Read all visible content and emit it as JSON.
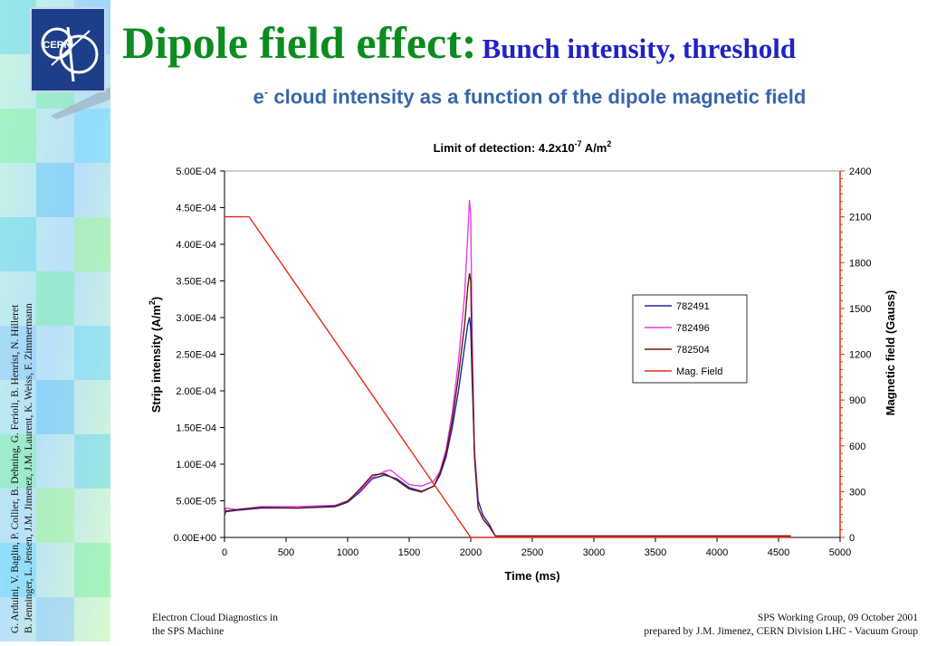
{
  "header": {
    "title_main": "Dipole field effect:",
    "title_sub": "Bunch intensity, threshold",
    "subtitle_e": "e",
    "subtitle_sup": "-",
    "subtitle_rest": " cloud intensity as a function of the dipole magnetic field"
  },
  "logo": {
    "text": "CERN"
  },
  "authors": {
    "line1": "G. Arduini, V. Baglin, P. Collier, B. Dehning, G. Ferioli, B. Henrist, N. Hilleret",
    "line2": "B. Jenninger, L. Jensen, J.M. Jimenez, J.M. Laurent, K. Weiss, F. Zimmermann"
  },
  "footer": {
    "left_line1": "Electron Cloud Diagnostics in",
    "left_line2": "the SPS Machine",
    "right_line1": "SPS Working Group, 09 October 2001",
    "right_line2": "prepared by J.M. Jimenez, CERN Division LHC - Vacuum Group"
  },
  "colors": {
    "title_green": "#0c8c1f",
    "title_blue": "#1f23c4",
    "subtitle_blue": "#3567a8",
    "series_782491": "#1a2aa8",
    "series_782496": "#e23ee8",
    "series_782504": "#6b1a0e",
    "mag_field": "#e8281e"
  },
  "chart_data": {
    "type": "line",
    "title_main": "Limit of detection: 4.2x10",
    "title_exp1": "-7",
    "title_unit": " A/m",
    "title_exp2": "2",
    "xlabel": "Time (ms)",
    "ylabel_main": "Strip intensity (A/m",
    "ylabel_exp": "2",
    "ylabel_close": ")",
    "y2label": "Magnetic field (Gauss)",
    "xlim": [
      0,
      5000
    ],
    "ylim": [
      0,
      0.0005
    ],
    "y2lim": [
      0,
      2400
    ],
    "x_ticks": [
      "0",
      "500",
      "1000",
      "1500",
      "2000",
      "2500",
      "3000",
      "3500",
      "4000",
      "4500",
      "5000"
    ],
    "y_ticks": [
      "0.00E+00",
      "5.00E-05",
      "1.00E-04",
      "1.50E-04",
      "2.00E-04",
      "2.50E-04",
      "3.00E-04",
      "3.50E-04",
      "4.00E-04",
      "4.50E-04",
      "5.00E-04"
    ],
    "y2_ticks": [
      "0",
      "300",
      "600",
      "900",
      "1200",
      "1500",
      "1800",
      "2100",
      "2400"
    ],
    "legend_position": "right",
    "series": [
      {
        "name": "782491",
        "axis": "left",
        "x": [
          0,
          10,
          100,
          300,
          600,
          900,
          1000,
          1100,
          1200,
          1300,
          1400,
          1500,
          1600,
          1700,
          1750,
          1800,
          1850,
          1900,
          1950,
          1975,
          1990,
          2000,
          2010,
          2030,
          2060,
          2100,
          2150,
          2200,
          2300,
          3000,
          4000,
          4600
        ],
        "y": [
          3e-05,
          3.5e-05,
          3.7e-05,
          4e-05,
          4e-05,
          4.2e-05,
          4.8e-05,
          6.2e-05,
          8e-05,
          8.5e-05,
          8e-05,
          6.8e-05,
          6.3e-05,
          7e-05,
          8.5e-05,
          0.00011,
          0.00015,
          0.0002,
          0.00026,
          0.00029,
          0.0003,
          0.000285,
          0.00022,
          0.00012,
          5e-05,
          3e-05,
          1.8e-05,
          2e-06,
          2e-06,
          2e-06,
          2e-06,
          2e-06
        ]
      },
      {
        "name": "782496",
        "axis": "left",
        "x": [
          0,
          10,
          100,
          300,
          600,
          900,
          1000,
          1100,
          1200,
          1300,
          1350,
          1400,
          1500,
          1600,
          1700,
          1750,
          1800,
          1850,
          1900,
          1950,
          1975,
          1990,
          2000,
          2010,
          2030,
          2060,
          2100,
          2150,
          2200,
          2300,
          3000,
          4000,
          4600
        ],
        "y": [
          3e-05,
          4e-05,
          3.8e-05,
          4.2e-05,
          4.2e-05,
          4.4e-05,
          5e-05,
          6.4e-05,
          8.2e-05,
          9e-05,
          9.2e-05,
          8.5e-05,
          7.2e-05,
          7e-05,
          7.7e-05,
          9e-05,
          0.00012,
          0.00017,
          0.00024,
          0.00033,
          0.00041,
          0.00046,
          0.00044,
          0.00028,
          0.00012,
          4e-05,
          2.5e-05,
          1.5e-05,
          2e-06,
          2e-06,
          2e-06,
          2e-06,
          2e-06
        ]
      },
      {
        "name": "782504",
        "axis": "left",
        "x": [
          0,
          10,
          100,
          300,
          600,
          900,
          1000,
          1100,
          1200,
          1300,
          1400,
          1500,
          1600,
          1700,
          1750,
          1800,
          1850,
          1900,
          1950,
          1975,
          1990,
          2000,
          2010,
          2030,
          2060,
          2100,
          2150,
          2200,
          2300,
          3000,
          4000,
          4600
        ],
        "y": [
          3e-05,
          3.6e-05,
          3.8e-05,
          4.1e-05,
          4e-05,
          4.3e-05,
          4.9e-05,
          6.6e-05,
          8.5e-05,
          8.7e-05,
          7.8e-05,
          6.6e-05,
          6.2e-05,
          7e-05,
          8.8e-05,
          0.000115,
          0.00016,
          0.00022,
          0.00029,
          0.00034,
          0.00036,
          0.00035,
          0.00025,
          0.00011,
          4e-05,
          2.5e-05,
          1.5e-05,
          2e-06,
          2e-06,
          2e-06,
          2e-06,
          2e-06
        ]
      },
      {
        "name": "Mag. Field",
        "axis": "right",
        "x": [
          0,
          200,
          2000,
          2010,
          4600
        ],
        "y": [
          2100,
          2100,
          0,
          0,
          0
        ]
      }
    ]
  }
}
